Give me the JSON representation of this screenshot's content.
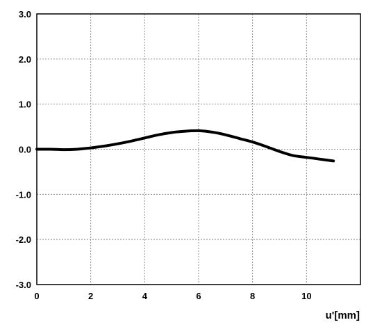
{
  "chart_data": {
    "type": "line",
    "title": "",
    "xlabel": "u'[mm]",
    "ylabel": "",
    "xlim": [
      0,
      12
    ],
    "ylim": [
      -3.0,
      3.0
    ],
    "grid": true,
    "legend": "none",
    "x_ticks": [
      "0",
      "2",
      "4",
      "6",
      "8",
      "10"
    ],
    "y_ticks": [
      "3.0",
      "2.0",
      "1.0",
      "0.0",
      "-1.0",
      "-2.0",
      "-3.0"
    ],
    "line_color": "#000000",
    "series": [
      {
        "x": [
          0,
          0.5,
          1.0,
          1.5,
          2.0,
          2.5,
          3.0,
          3.5,
          4.0,
          4.5,
          5.0,
          5.5,
          6.0,
          6.5,
          7.0,
          7.5,
          8.0,
          8.5,
          9.0,
          9.5,
          10.0,
          10.5,
          11.0
        ],
        "y": [
          0.0,
          0.0,
          -0.01,
          0.0,
          0.03,
          0.07,
          0.12,
          0.18,
          0.25,
          0.32,
          0.37,
          0.4,
          0.41,
          0.38,
          0.32,
          0.24,
          0.16,
          0.06,
          -0.05,
          -0.14,
          -0.18,
          -0.22,
          -0.26
        ]
      }
    ]
  }
}
